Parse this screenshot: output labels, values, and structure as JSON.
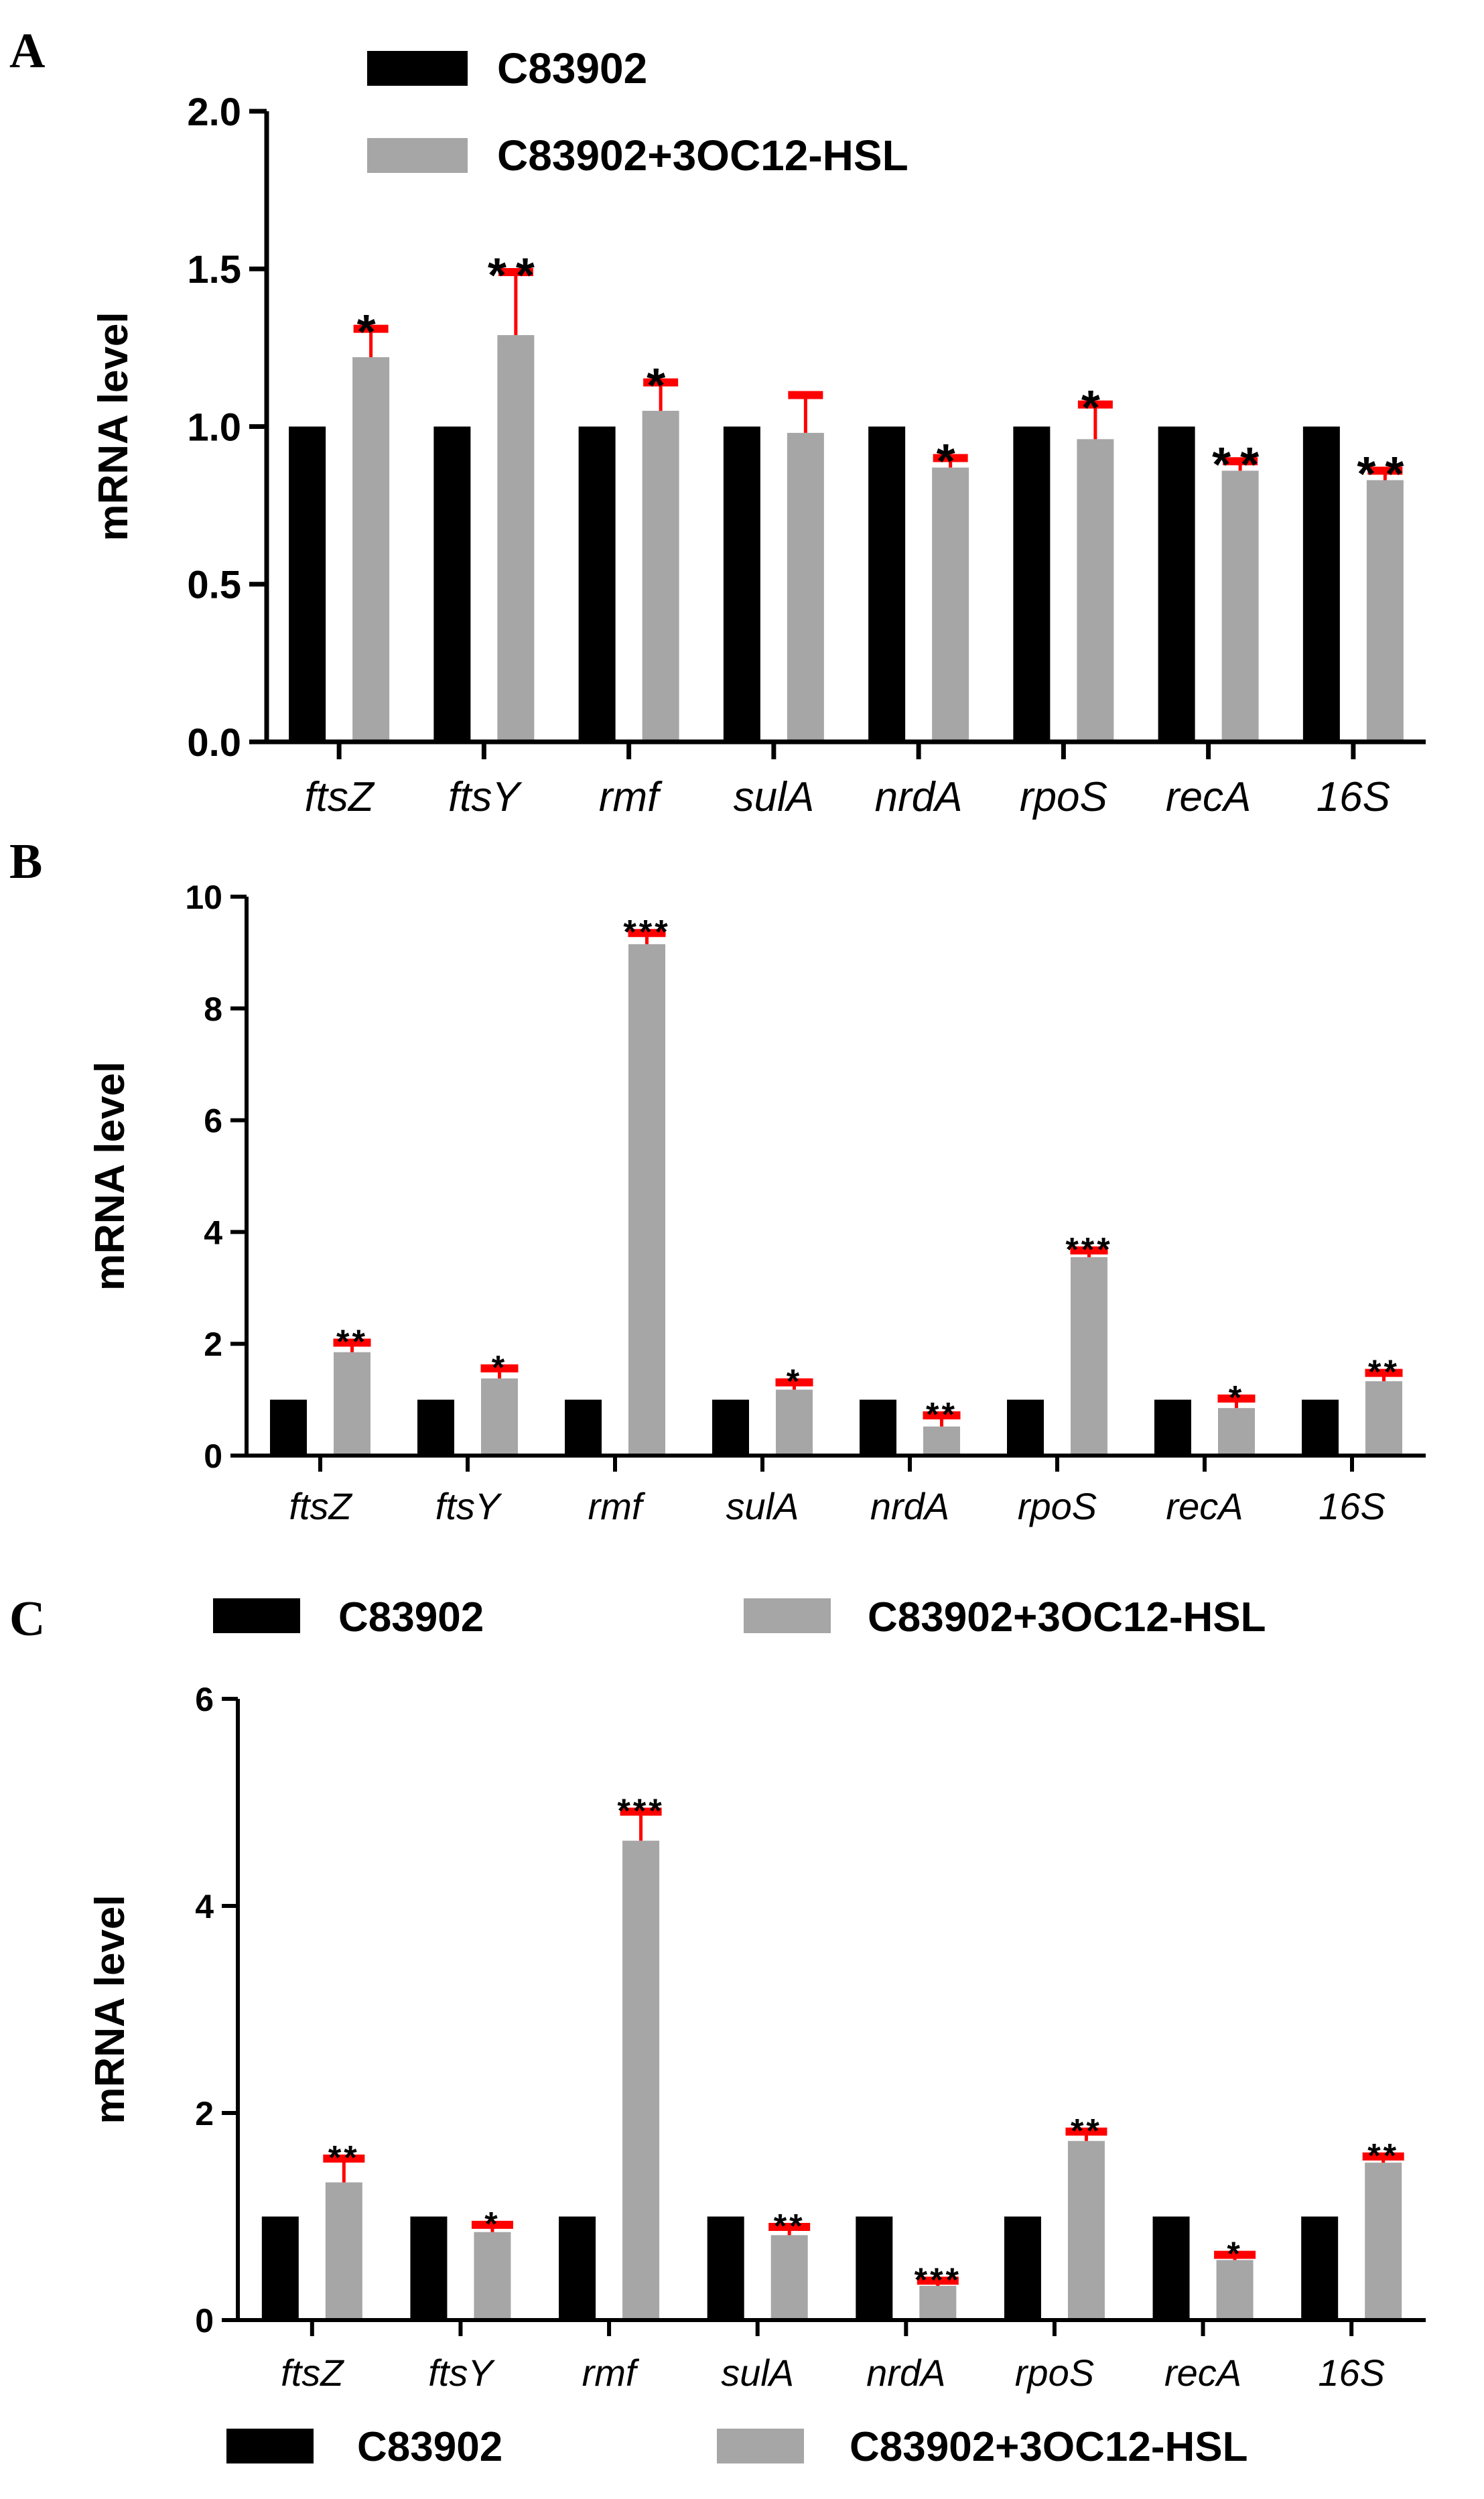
{
  "figure": {
    "series_names": [
      "C83902",
      "C83902+3OC12-HSL"
    ],
    "colors": {
      "control": "#000000",
      "treated": "#a6a6a6",
      "error_bar": "#ff0000",
      "axis": "#000000"
    }
  },
  "chart_data": [
    {
      "panel": "A",
      "type": "bar",
      "categories": [
        "ftsZ",
        "ftsY",
        "rmf",
        "sulA",
        "nrdA",
        "rpoS",
        "recA",
        "16S"
      ],
      "series": [
        {
          "name": "C83902",
          "values": [
            1,
            1,
            1,
            1,
            1,
            1,
            1,
            1
          ]
        },
        {
          "name": "C83902+3OC12-HSL",
          "values": [
            1.22,
            1.29,
            1.05,
            0.98,
            0.87,
            0.96,
            0.86,
            0.83
          ],
          "errors": [
            0.09,
            0.2,
            0.09,
            0.12,
            0.03,
            0.11,
            0.03,
            0.03
          ]
        }
      ],
      "significance": [
        "*",
        "**",
        "*",
        "",
        "*",
        "*",
        "**",
        "**"
      ],
      "title": "",
      "xlabel": "",
      "ylabel": "mRNA level",
      "ylim": [
        0,
        2
      ],
      "yticks": [
        "0.0",
        "0.5",
        "1.0",
        "1.5",
        "2.0"
      ],
      "legend": "top"
    },
    {
      "panel": "B",
      "type": "bar",
      "categories": [
        "ftsZ",
        "ftsY",
        "rmf",
        "sulA",
        "nrdA",
        "rpoS",
        "recA",
        "16S"
      ],
      "series": [
        {
          "name": "C83902",
          "values": [
            1,
            1,
            1,
            1,
            1,
            1,
            1,
            1
          ]
        },
        {
          "name": "C83902+3OC12-HSL",
          "values": [
            1.85,
            1.38,
            9.15,
            1.18,
            0.52,
            3.55,
            0.85,
            1.33
          ],
          "errors": [
            0.17,
            0.18,
            0.2,
            0.13,
            0.2,
            0.12,
            0.17,
            0.15
          ]
        }
      ],
      "significance": [
        "**",
        "*",
        "***",
        "*",
        "**",
        "***",
        "*",
        "**"
      ],
      "title": "",
      "xlabel": "",
      "ylabel": "mRNA level",
      "ylim": [
        0,
        10
      ],
      "yticks": [
        "0",
        "2",
        "4",
        "6",
        "8",
        "10"
      ],
      "legend": "none"
    },
    {
      "panel": "C",
      "type": "bar",
      "categories": [
        "ftsZ",
        "ftsY",
        "rmf",
        "sulA",
        "nrdA",
        "rpoS",
        "recA",
        "16S"
      ],
      "series": [
        {
          "name": "C83902",
          "values": [
            1,
            1,
            1,
            1,
            1,
            1,
            1,
            1
          ]
        },
        {
          "name": "C83902+3OC12-HSL",
          "values": [
            1.33,
            0.85,
            4.63,
            0.82,
            0.33,
            1.73,
            0.58,
            1.52
          ],
          "errors": [
            0.23,
            0.07,
            0.28,
            0.08,
            0.05,
            0.09,
            0.05,
            0.06
          ]
        }
      ],
      "significance": [
        "**",
        "*",
        "***",
        "**",
        "***",
        "**",
        "*",
        "**"
      ],
      "title": "",
      "xlabel": "",
      "ylabel": "mRNA level",
      "ylim": [
        0,
        6
      ],
      "yticks": [
        "0",
        "2",
        "4",
        "6"
      ],
      "legend": "top and bottom"
    }
  ]
}
